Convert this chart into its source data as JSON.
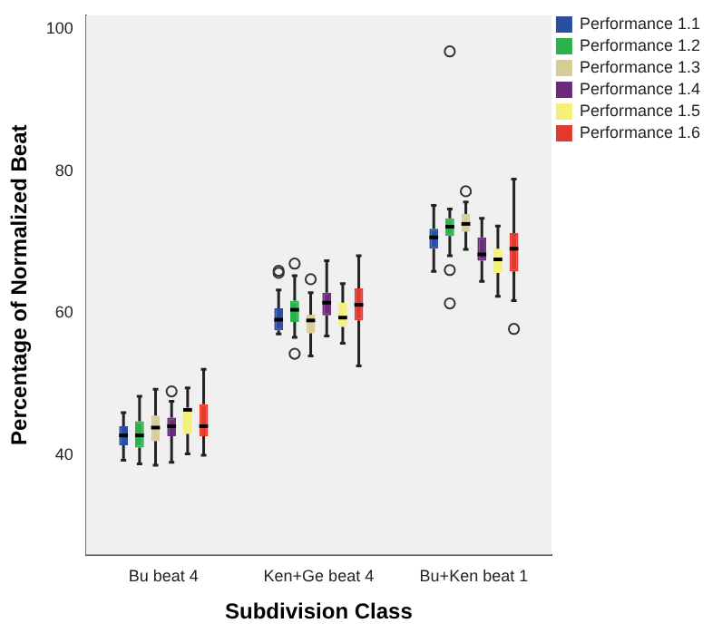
{
  "chart_data": {
    "type": "box",
    "xlabel": "Subdivision Class",
    "ylabel": "Percentage of Normalized Beat",
    "categories": [
      "Bu beat 4",
      "Ken+Ge beat 4",
      "Bu+Ken beat 1"
    ],
    "ylim": [
      26,
      102
    ],
    "yticks": [
      40,
      60,
      80,
      100
    ],
    "grid": false,
    "legend": "top right",
    "series": [
      {
        "name": "Performance 1.1",
        "color": "#2a4ea0",
        "boxes": [
          {
            "low": 39.3,
            "q1": 41.4,
            "median": 42.8,
            "q3": 44.1,
            "high": 46.0
          },
          {
            "low": 57.1,
            "q1": 57.6,
            "median": 59.1,
            "q3": 60.7,
            "high": 63.3,
            "outliers": [
              65.7,
              66.0
            ]
          },
          {
            "low": 65.9,
            "q1": 69.1,
            "median": 70.7,
            "q3": 71.9,
            "high": 75.2
          }
        ]
      },
      {
        "name": "Performance 1.2",
        "color": "#2bb34a",
        "boxes": [
          {
            "low": 38.8,
            "q1": 41.1,
            "median": 42.8,
            "q3": 44.8,
            "high": 48.3
          },
          {
            "low": 56.6,
            "q1": 58.8,
            "median": 60.5,
            "q3": 61.8,
            "high": 65.3,
            "outliers": [
              67.0,
              54.3
            ]
          },
          {
            "low": 68.1,
            "q1": 70.9,
            "median": 72.2,
            "q3": 73.4,
            "high": 74.7,
            "outliers": [
              66.1,
              61.4,
              96.9
            ]
          }
        ]
      },
      {
        "name": "Performance 1.3",
        "color": "#d8cc96",
        "boxes": [
          {
            "low": 38.6,
            "q1": 42.0,
            "median": 43.9,
            "q3": 45.6,
            "high": 49.3
          },
          {
            "low": 54.0,
            "q1": 57.2,
            "median": 59.0,
            "q3": 59.8,
            "high": 62.9,
            "outliers": [
              64.8
            ]
          },
          {
            "low": 69.0,
            "q1": 71.5,
            "median": 72.6,
            "q3": 74.0,
            "high": 75.7,
            "outliers": [
              77.2
            ]
          }
        ]
      },
      {
        "name": "Performance 1.4",
        "color": "#6b2a7a",
        "boxes": [
          {
            "low": 39.0,
            "q1": 42.7,
            "median": 44.1,
            "q3": 45.3,
            "high": 47.6,
            "outliers": [
              49.0
            ]
          },
          {
            "low": 56.8,
            "q1": 59.7,
            "median": 61.5,
            "q3": 62.9,
            "high": 67.4
          },
          {
            "low": 64.5,
            "q1": 67.4,
            "median": 68.3,
            "q3": 70.7,
            "high": 73.4
          }
        ]
      },
      {
        "name": "Performance 1.5",
        "color": "#f5f07a",
        "boxes": [
          {
            "low": 40.2,
            "q1": 43.0,
            "median": 46.4,
            "q3": 46.7,
            "high": 49.5
          },
          {
            "low": 55.8,
            "q1": 58.1,
            "median": 59.4,
            "q3": 61.5,
            "high": 64.2
          },
          {
            "low": 62.4,
            "q1": 65.7,
            "median": 67.6,
            "q3": 69.1,
            "high": 72.3
          }
        ]
      },
      {
        "name": "Performance 1.6",
        "color": "#e23a2e",
        "boxes": [
          {
            "low": 40.0,
            "q1": 42.7,
            "median": 44.1,
            "q3": 47.2,
            "high": 52.1
          },
          {
            "low": 52.6,
            "q1": 59.0,
            "median": 61.2,
            "q3": 63.5,
            "high": 68.1
          },
          {
            "low": 61.8,
            "q1": 65.9,
            "median": 69.1,
            "q3": 71.3,
            "high": 78.9,
            "outliers": [
              57.8
            ]
          }
        ]
      }
    ]
  }
}
